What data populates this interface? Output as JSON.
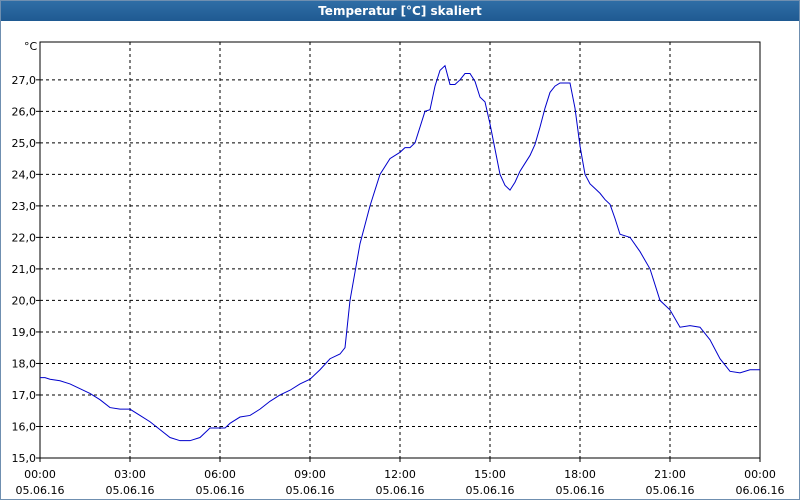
{
  "window": {
    "title": "Temperatur [°C] skaliert"
  },
  "chart_data": {
    "type": "line",
    "title": "Temperatur [°C] skaliert",
    "ylabel": "°C",
    "xlabel": "",
    "grid": true,
    "ylim": [
      15.0,
      28.2
    ],
    "xlim": [
      0,
      24
    ],
    "yticks": [
      "15,0",
      "16,0",
      "17,0",
      "18,0",
      "19,0",
      "20,0",
      "21,0",
      "22,0",
      "23,0",
      "24,0",
      "25,0",
      "26,0",
      "27,0"
    ],
    "xticks": [
      {
        "time": "00:00",
        "date": "05.06.16"
      },
      {
        "time": "03:00",
        "date": "05.06.16"
      },
      {
        "time": "06:00",
        "date": "05.06.16"
      },
      {
        "time": "09:00",
        "date": "05.06.16"
      },
      {
        "time": "12:00",
        "date": "05.06.16"
      },
      {
        "time": "15:00",
        "date": "05.06.16"
      },
      {
        "time": "18:00",
        "date": "05.06.16"
      },
      {
        "time": "21:00",
        "date": "05.06.16"
      },
      {
        "time": "00:00",
        "date": "06.06.16"
      }
    ],
    "line_color": "#0000cc",
    "series": [
      {
        "x": [
          "00:00",
          "00:10",
          "00:20",
          "00:40",
          "01:00",
          "01:20",
          "01:40",
          "02:00",
          "02:20",
          "02:40",
          "03:00",
          "03:20",
          "03:40",
          "04:00",
          "04:20",
          "04:40",
          "05:00",
          "05:20",
          "05:40",
          "06:00",
          "06:10",
          "06:20",
          "06:40",
          "07:00",
          "07:20",
          "07:40",
          "08:00",
          "08:20",
          "08:40",
          "09:00",
          "09:20",
          "09:40",
          "10:00",
          "10:10",
          "10:20",
          "10:40",
          "11:00",
          "11:20",
          "11:40",
          "12:00",
          "12:10",
          "12:20",
          "12:30",
          "12:40",
          "12:50",
          "13:00",
          "13:10",
          "13:20",
          "13:30",
          "13:40",
          "13:50",
          "14:00",
          "14:10",
          "14:20",
          "14:30",
          "14:40",
          "14:50",
          "15:00",
          "15:10",
          "15:20",
          "15:30",
          "15:40",
          "15:50",
          "16:00",
          "16:10",
          "16:20",
          "16:30",
          "16:40",
          "16:50",
          "17:00",
          "17:10",
          "17:20",
          "17:30",
          "17:40",
          "17:50",
          "18:00",
          "18:10",
          "18:20",
          "18:30",
          "18:40",
          "18:50",
          "19:00",
          "19:10",
          "19:20",
          "19:30",
          "19:40",
          "20:00",
          "20:20",
          "20:40",
          "21:00",
          "21:20",
          "21:40",
          "22:00",
          "22:20",
          "22:40",
          "23:00",
          "23:20",
          "23:40",
          "00:00"
        ],
        "y": [
          17.55,
          17.55,
          17.5,
          17.45,
          17.35,
          17.2,
          17.05,
          16.85,
          16.6,
          16.55,
          16.55,
          16.35,
          16.15,
          15.9,
          15.65,
          15.55,
          15.55,
          15.65,
          15.95,
          15.95,
          15.95,
          16.1,
          16.3,
          16.35,
          16.55,
          16.8,
          17.0,
          17.15,
          17.35,
          17.5,
          17.8,
          18.15,
          18.3,
          18.5,
          20.0,
          21.8,
          23.0,
          24.0,
          24.5,
          24.7,
          24.85,
          24.85,
          25.0,
          25.5,
          26.0,
          26.05,
          26.8,
          27.3,
          27.45,
          26.85,
          26.85,
          27.0,
          27.2,
          27.2,
          26.95,
          26.45,
          26.3,
          25.6,
          24.8,
          24.0,
          23.65,
          23.5,
          23.75,
          24.1,
          24.35,
          24.6,
          24.95,
          25.5,
          26.1,
          26.6,
          26.8,
          26.9,
          26.9,
          26.9,
          26.1,
          24.9,
          24.0,
          23.7,
          23.55,
          23.4,
          23.2,
          23.05,
          22.6,
          22.1,
          22.05,
          22.0,
          21.55,
          21.0,
          20.0,
          19.7,
          19.15,
          19.2,
          19.15,
          18.75,
          18.15,
          17.75,
          17.7,
          17.8,
          17.8
        ]
      }
    ]
  }
}
